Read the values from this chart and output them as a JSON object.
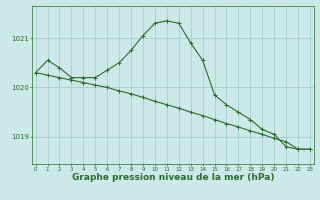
{
  "line1_x": [
    0,
    1,
    2,
    3,
    4,
    5,
    6,
    7,
    8,
    9,
    10,
    11,
    12,
    13,
    14,
    15,
    16,
    17,
    18,
    19,
    20,
    21,
    22,
    23
  ],
  "line1_y": [
    1020.3,
    1020.55,
    1020.4,
    1020.2,
    1020.2,
    1020.2,
    1020.35,
    1020.5,
    1020.75,
    1021.05,
    1021.3,
    1021.35,
    1021.3,
    1020.9,
    1020.55,
    1019.85,
    1019.65,
    1019.5,
    1019.35,
    1019.15,
    1019.05,
    1018.8,
    1018.75,
    1018.75
  ],
  "line2_x": [
    0,
    1,
    2,
    3,
    4,
    5,
    6,
    7,
    8,
    9,
    10,
    11,
    12,
    13,
    14,
    15,
    16,
    17,
    18,
    19,
    20,
    21,
    22,
    23
  ],
  "line2_y": [
    1020.3,
    1020.25,
    1020.2,
    1020.15,
    1020.1,
    1020.05,
    1020.0,
    1019.93,
    1019.87,
    1019.8,
    1019.72,
    1019.65,
    1019.58,
    1019.5,
    1019.43,
    1019.35,
    1019.27,
    1019.2,
    1019.12,
    1019.05,
    1018.97,
    1018.9,
    1018.75,
    1018.75
  ],
  "color_main": "#2d6a2d",
  "bg_color": "#cce8e8",
  "grid_color": "#99cccc",
  "ylabel_ticks": [
    1019,
    1020,
    1021
  ],
  "xlabel": "Graphe pression niveau de la mer (hPa)",
  "xlim": [
    -0.3,
    23.3
  ],
  "ylim": [
    1018.45,
    1021.65
  ],
  "xlabel_fontsize": 6.5
}
